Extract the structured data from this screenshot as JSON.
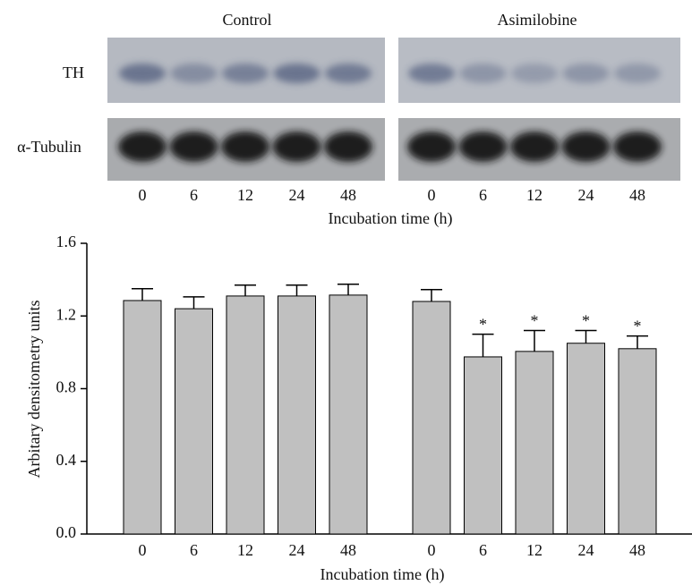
{
  "blot": {
    "groups": [
      "Control",
      "Asimilobine"
    ],
    "rows": [
      "TH",
      "α-Tubulin"
    ],
    "lanes": [
      "0",
      "6",
      "12",
      "24",
      "48",
      "0",
      "6",
      "12",
      "24",
      "48"
    ],
    "xlabel": "Incubation time (h)"
  },
  "chart_data": {
    "type": "bar",
    "categories": [
      "0",
      "6",
      "12",
      "24",
      "48",
      "0",
      "6",
      "12",
      "24",
      "48"
    ],
    "values": [
      1.285,
      1.24,
      1.31,
      1.31,
      1.315,
      1.28,
      0.975,
      1.005,
      1.05,
      1.02
    ],
    "errors": [
      0.065,
      0.065,
      0.06,
      0.06,
      0.06,
      0.065,
      0.125,
      0.115,
      0.07,
      0.07
    ],
    "markers": [
      null,
      null,
      null,
      null,
      null,
      null,
      "*",
      "*",
      "*",
      "*"
    ],
    "color": "#c0c0c0",
    "xlabel": "Incubation time (h)",
    "ylabel": "Arbitary densitometry units",
    "ylim": [
      0,
      1.6
    ],
    "yticks": [
      {
        "value": 0,
        "label": "0.0"
      },
      0.4,
      0.8,
      1.2,
      1.6
    ]
  }
}
